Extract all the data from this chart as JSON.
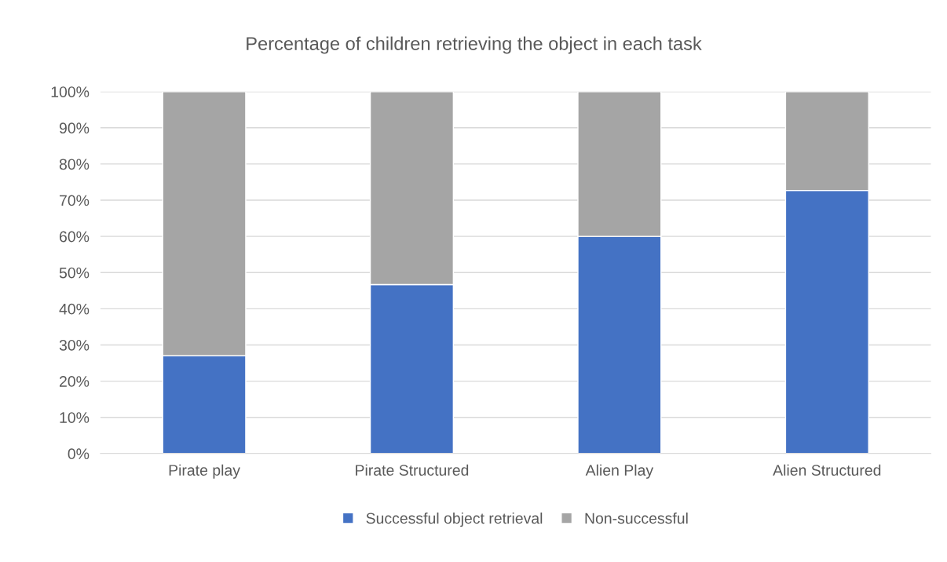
{
  "chart_data": {
    "type": "bar",
    "title": "Percentage of children retrieving the object in each task",
    "categories": [
      "Pirate play",
      "Pirate Structured",
      "Alien Play",
      "Alien Structured"
    ],
    "series": [
      {
        "name": "Successful object retrieval",
        "color": "#4472c4",
        "values": [
          27,
          46.7,
          60,
          72.7
        ]
      },
      {
        "name": "Non-successful",
        "color": "#a5a5a5",
        "values": [
          73,
          53.3,
          40,
          27.3
        ]
      }
    ],
    "stacked": true,
    "ylim": [
      0,
      100
    ],
    "yticks": [
      {
        "value": 0,
        "label": "0%"
      },
      {
        "value": 10,
        "label": "10%"
      },
      {
        "value": 20,
        "label": "20%"
      },
      {
        "value": 30,
        "label": "30%"
      },
      {
        "value": 40,
        "label": "40%"
      },
      {
        "value": 50,
        "label": "50%"
      },
      {
        "value": 60,
        "label": "60%"
      },
      {
        "value": 70,
        "label": "70%"
      },
      {
        "value": 80,
        "label": "80%"
      },
      {
        "value": 90,
        "label": "90%"
      },
      {
        "value": 100,
        "label": "100%"
      }
    ],
    "grid": "y",
    "legend": "bottom"
  }
}
